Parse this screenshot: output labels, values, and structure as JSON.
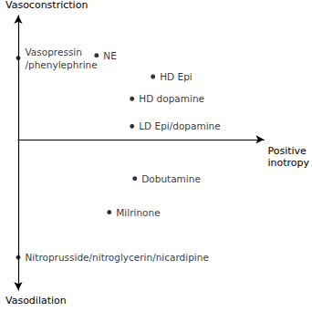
{
  "chart_data": {
    "type": "scatter",
    "axis_labels": {
      "x": "Positive\ninotropy",
      "y_top": "Vasoconstriction",
      "y_bottom": "Vasodilation"
    },
    "labels": [
      "Vasopressin\n/phenylephrine",
      "NE",
      "HD Epi",
      "HD dopamine",
      "LD Epi/dopamine",
      "Dobutamine",
      "Milrinone",
      "Nitroprusside/nitroglycerin/nicardipine"
    ],
    "x": [
      0,
      8.6,
      14.8,
      12.5,
      12.5,
      12.8,
      10,
      0
    ],
    "y": [
      9.2,
      9.5,
      7.1,
      4.6,
      1.5,
      -4.4,
      -8.2,
      -13.3
    ],
    "xlim": [
      0,
      27
    ],
    "ylim": [
      -17,
      14
    ],
    "color": "#000000",
    "grid": false,
    "tick_labels": false
  }
}
